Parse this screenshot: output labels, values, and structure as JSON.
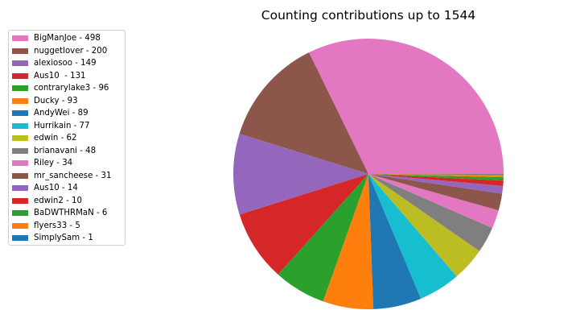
{
  "chart_data": {
    "type": "pie",
    "title": "Counting contributions up to 1544",
    "legend_position": "upper-left",
    "slices": [
      {
        "label": "BigManJoe - 498",
        "value": 498,
        "color": "#e377c2"
      },
      {
        "label": "nuggetlover - 200",
        "value": 200,
        "color": "#8c564b"
      },
      {
        "label": "alexiosoo - 149",
        "value": 149,
        "color": "#9467bd"
      },
      {
        "label": "Aus10  - 131",
        "value": 131,
        "color": "#d62728"
      },
      {
        "label": "contrarylake3 - 96",
        "value": 96,
        "color": "#2ca02c"
      },
      {
        "label": "Ducky - 93",
        "value": 93,
        "color": "#ff7f0e"
      },
      {
        "label": "AndyWei - 89",
        "value": 89,
        "color": "#1f77b4"
      },
      {
        "label": "Hurrikain - 77",
        "value": 77,
        "color": "#17becf"
      },
      {
        "label": "edwin - 62",
        "value": 62,
        "color": "#bcbd22"
      },
      {
        "label": "brianavani - 48",
        "value": 48,
        "color": "#7f7f7f"
      },
      {
        "label": "Riley - 34",
        "value": 34,
        "color": "#e377c2"
      },
      {
        "label": "mr_sancheese - 31",
        "value": 31,
        "color": "#8c564b"
      },
      {
        "label": "Aus10 - 14",
        "value": 14,
        "color": "#9467bd"
      },
      {
        "label": "edwin2 - 10",
        "value": 10,
        "color": "#d62728"
      },
      {
        "label": "BaDWTHRMaN - 6",
        "value": 6,
        "color": "#2ca02c"
      },
      {
        "label": "flyers33 - 5",
        "value": 5,
        "color": "#ff7f0e"
      },
      {
        "label": "SimplySam - 1",
        "value": 1,
        "color": "#1f77b4"
      }
    ]
  }
}
